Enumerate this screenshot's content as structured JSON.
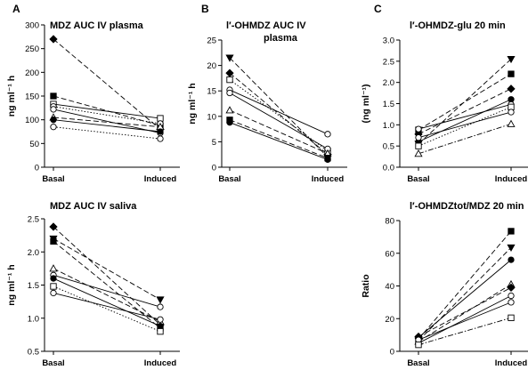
{
  "chart_data": [
    {
      "type": "line",
      "letter": "A",
      "title": [
        "MDZ AUC IV plasma"
      ],
      "ylabel": "ng ml⁻¹ h",
      "categories": [
        "Basal",
        "Induced"
      ],
      "ylim": [
        0,
        300
      ],
      "yticks": [
        0,
        50,
        100,
        150,
        200,
        250,
        300
      ],
      "series": [
        {
          "values": [
            270,
            80
          ],
          "marker": "diamond-filled",
          "dash": "long"
        },
        {
          "values": [
            150,
            88
          ],
          "marker": "square-filled",
          "dash": "long"
        },
        {
          "values": [
            133,
            103
          ],
          "marker": "square-open",
          "dash": "solid"
        },
        {
          "values": [
            128,
            92
          ],
          "marker": "circle-open",
          "dash": "dot"
        },
        {
          "values": [
            122,
            72
          ],
          "marker": "circle-open",
          "dash": "solid"
        },
        {
          "values": [
            105,
            85
          ],
          "marker": "triangle-open",
          "dash": "long"
        },
        {
          "values": [
            100,
            75
          ],
          "marker": "circle-filled",
          "dash": "solid"
        },
        {
          "values": [
            85,
            60
          ],
          "marker": "circle-open",
          "dash": "dot"
        }
      ]
    },
    {
      "type": "line",
      "letter": "B",
      "title": [
        "l′-OHMDZ AUC IV",
        "plasma"
      ],
      "ylabel": "ng ml⁻¹ h",
      "categories": [
        "Basal",
        "Induced"
      ],
      "ylim": [
        0,
        25
      ],
      "yticks": [
        0,
        5,
        10,
        15,
        20,
        25
      ],
      "series": [
        {
          "values": [
            21.5,
            2.0
          ],
          "marker": "triangle-down-filled",
          "dash": "long"
        },
        {
          "values": [
            18.5,
            2.5
          ],
          "marker": "diamond-filled",
          "dash": "long"
        },
        {
          "values": [
            17.2,
            3.2
          ],
          "marker": "square-open",
          "dash": "dot"
        },
        {
          "values": [
            15.2,
            6.5
          ],
          "marker": "circle-open",
          "dash": "solid"
        },
        {
          "values": [
            14.6,
            3.6
          ],
          "marker": "circle-open",
          "dash": "solid"
        },
        {
          "values": [
            11.2,
            2.7
          ],
          "marker": "triangle-open",
          "dash": "long"
        },
        {
          "values": [
            9.3,
            1.8
          ],
          "marker": "square-filled",
          "dash": "long"
        },
        {
          "values": [
            8.8,
            1.5
          ],
          "marker": "circle-filled",
          "dash": "solid"
        }
      ]
    },
    {
      "type": "line",
      "letter": "C",
      "title": [
        "l′-OHMDZ-glu 20 min"
      ],
      "ylabel": "(ng ml⁻¹)",
      "categories": [
        "Basal",
        "Induced"
      ],
      "ylim": [
        0,
        3.0
      ],
      "yticks": [
        0.0,
        0.5,
        1.0,
        1.5,
        2.0,
        2.5,
        3.0
      ],
      "ytick_labels": [
        "0.0",
        "0.5",
        "1.0",
        "1.5",
        "2.0",
        "2.5",
        "3.0"
      ],
      "series": [
        {
          "values": [
            0.55,
            2.55
          ],
          "marker": "triangle-down-filled",
          "dash": "long"
        },
        {
          "values": [
            0.88,
            2.2
          ],
          "marker": "square-filled",
          "dash": "long"
        },
        {
          "values": [
            0.78,
            1.85
          ],
          "marker": "diamond-filled",
          "dash": "long"
        },
        {
          "values": [
            0.6,
            1.6
          ],
          "marker": "circle-filled",
          "dash": "solid"
        },
        {
          "values": [
            0.9,
            1.48
          ],
          "marker": "circle-open",
          "dash": "solid"
        },
        {
          "values": [
            0.5,
            1.42
          ],
          "marker": "square-open",
          "dash": "dot"
        },
        {
          "values": [
            0.7,
            1.3
          ],
          "marker": "circle-open",
          "dash": "solid"
        },
        {
          "values": [
            0.32,
            1.02
          ],
          "marker": "triangle-open",
          "dash": "dash-dot"
        }
      ]
    },
    {
      "type": "line",
      "letter": "",
      "title": [
        "MDZ AUC IV saliva"
      ],
      "ylabel": "ng ml⁻¹ h",
      "categories": [
        "Basal",
        "Induced"
      ],
      "ylim": [
        0.5,
        2.5
      ],
      "yticks": [
        0.5,
        1.0,
        1.5,
        2.0,
        2.5
      ],
      "ytick_labels": [
        "0.5",
        "1.0",
        "1.5",
        "2.0",
        "2.5"
      ],
      "series": [
        {
          "values": [
            2.38,
            0.9
          ],
          "marker": "diamond-filled",
          "dash": "long"
        },
        {
          "values": [
            2.2,
            1.28
          ],
          "marker": "triangle-down-filled",
          "dash": "long"
        },
        {
          "values": [
            2.16,
            0.85
          ],
          "marker": "square-filled",
          "dash": "long"
        },
        {
          "values": [
            1.75,
            0.95
          ],
          "marker": "triangle-open",
          "dash": "long"
        },
        {
          "values": [
            1.65,
            1.17
          ],
          "marker": "circle-open",
          "dash": "solid"
        },
        {
          "values": [
            1.6,
            0.88
          ],
          "marker": "circle-filled",
          "dash": "solid"
        },
        {
          "values": [
            1.48,
            0.8
          ],
          "marker": "square-open",
          "dash": "dot"
        },
        {
          "values": [
            1.38,
            0.98
          ],
          "marker": "circle-open",
          "dash": "solid"
        }
      ]
    },
    {
      "type": "line",
      "letter": "",
      "title": [
        "l′-OHMDZtot/MDZ 20 min"
      ],
      "ylabel": "Ratio",
      "categories": [
        "Basal",
        "Induced"
      ],
      "ylim": [
        0,
        80
      ],
      "yticks": [
        0,
        20,
        40,
        60,
        80
      ],
      "series": [
        {
          "values": [
            7.5,
            73.5
          ],
          "marker": "square-filled",
          "dash": "long"
        },
        {
          "values": [
            6.5,
            63.5
          ],
          "marker": "triangle-down-filled",
          "dash": "long"
        },
        {
          "values": [
            8.5,
            56
          ],
          "marker": "circle-filled",
          "dash": "solid"
        },
        {
          "values": [
            6.0,
            41
          ],
          "marker": "triangle-open",
          "dash": "long"
        },
        {
          "values": [
            9.0,
            39
          ],
          "marker": "diamond-filled",
          "dash": "long"
        },
        {
          "values": [
            5.0,
            34
          ],
          "marker": "circle-open",
          "dash": "solid"
        },
        {
          "values": [
            7.0,
            30
          ],
          "marker": "circle-open",
          "dash": "solid"
        },
        {
          "values": [
            4.0,
            20.5
          ],
          "marker": "square-open",
          "dash": "dash-dot"
        }
      ]
    }
  ]
}
